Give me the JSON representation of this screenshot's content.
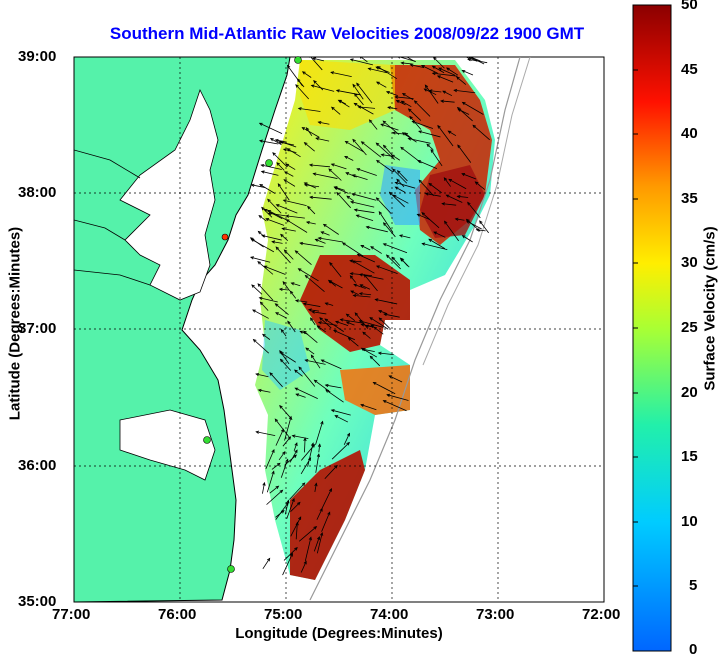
{
  "map": {
    "title": "Southern Mid-Atlantic Raw Velocities 2008/09/22 1900 GMT",
    "x_axis_label": "Longitude (Degrees:Minutes)",
    "y_axis_label": "Latitude (Degrees:Minutes)",
    "x_ticks": [
      "77:00",
      "76:00",
      "75:00",
      "74:00",
      "73:00",
      "72:00"
    ],
    "y_ticks": [
      "39:00",
      "38:00",
      "37:00",
      "36:00",
      "35:00"
    ],
    "colorbar": {
      "label": "Surface Velocity (cm/s)",
      "ticks": [
        "50",
        "45",
        "40",
        "35",
        "30",
        "25",
        "20",
        "15",
        "10",
        "5",
        "0"
      ],
      "range": [
        0,
        50
      ]
    },
    "colors": {
      "land": "#55f2aa",
      "coastline": "#000000",
      "title": "#0000ff",
      "arrows": "#000000",
      "station": "#33dd33"
    }
  }
}
